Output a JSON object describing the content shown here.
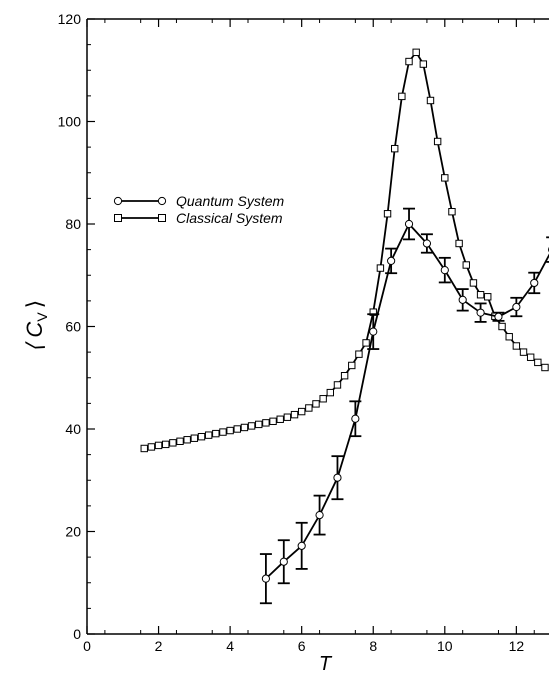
{
  "chart_data": {
    "type": "line",
    "title": "",
    "xlabel": "T",
    "ylabel": "⟨ C",
    "ylabel_sub": "V",
    "ylabel_close": "⟩",
    "xlim": [
      0,
      13
    ],
    "ylim": [
      0,
      120
    ],
    "xticks": [
      0,
      2,
      4,
      6,
      8,
      10,
      12
    ],
    "yticks": [
      0,
      20,
      40,
      60,
      80,
      100,
      120
    ],
    "grid": false,
    "legend_position": "top-left",
    "series": [
      {
        "name": "Quantum System",
        "marker": "circle",
        "color": "#000000",
        "x": [
          5.0,
          5.5,
          6.0,
          6.5,
          7.0,
          7.5,
          8.0,
          8.5,
          9.0,
          9.5,
          10.0,
          10.5,
          11.0,
          11.5,
          12.0,
          12.5,
          13.0
        ],
        "y": [
          10.8,
          14.1,
          17.2,
          23.2,
          30.5,
          42.0,
          59.0,
          72.8,
          80.0,
          76.2,
          71.0,
          65.2,
          62.7,
          61.9,
          63.8,
          68.5,
          75.0
        ],
        "error": [
          4.8,
          4.2,
          4.5,
          3.8,
          4.2,
          3.4,
          3.4,
          2.4,
          3.0,
          1.8,
          2.4,
          2.1,
          1.8,
          0.8,
          1.8,
          2.0,
          2.4
        ]
      },
      {
        "name": "Classical System",
        "marker": "square",
        "color": "#000000",
        "x": [
          1.6,
          1.8,
          2.0,
          2.2,
          2.4,
          2.6,
          2.8,
          3.0,
          3.2,
          3.4,
          3.6,
          3.8,
          4.0,
          4.2,
          4.4,
          4.6,
          4.8,
          5.0,
          5.2,
          5.4,
          5.6,
          5.8,
          6.0,
          6.2,
          6.4,
          6.6,
          6.8,
          7.0,
          7.2,
          7.4,
          7.6,
          7.8,
          8.0,
          8.2,
          8.4,
          8.6,
          8.8,
          9.0,
          9.2,
          9.4,
          9.6,
          9.8,
          10.0,
          10.2,
          10.4,
          10.6,
          10.8,
          11.0,
          11.2,
          11.4,
          11.6,
          11.8,
          12.0,
          12.2,
          12.4,
          12.6,
          12.8
        ],
        "y": [
          36.2,
          36.5,
          36.8,
          37.0,
          37.3,
          37.6,
          37.9,
          38.2,
          38.5,
          38.8,
          39.1,
          39.4,
          39.7,
          40.0,
          40.3,
          40.6,
          40.9,
          41.2,
          41.5,
          41.9,
          42.3,
          42.8,
          43.4,
          44.1,
          44.9,
          45.9,
          47.1,
          48.6,
          50.4,
          52.4,
          54.6,
          56.8,
          62.8,
          71.4,
          82.0,
          94.7,
          104.9,
          111.7,
          113.5,
          111.2,
          104.1,
          96.1,
          89.0,
          82.4,
          76.2,
          72.0,
          68.5,
          66.2,
          65.8,
          62.0,
          60.0,
          58.0,
          56.2,
          55.0,
          54.0,
          53.0,
          52.0
        ]
      }
    ]
  }
}
